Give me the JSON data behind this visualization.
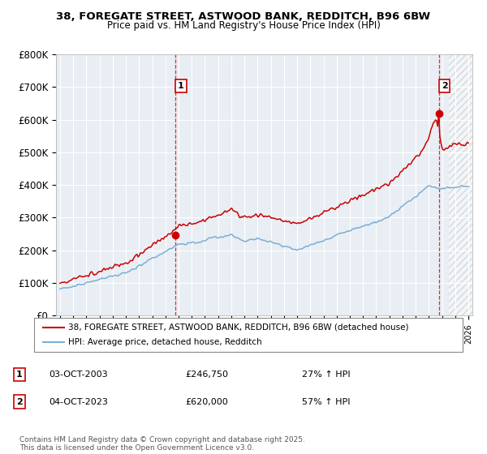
{
  "title_line1": "38, FOREGATE STREET, ASTWOOD BANK, REDDITCH, B96 6BW",
  "title_line2": "Price paid vs. HM Land Registry's House Price Index (HPI)",
  "ylabel_ticks": [
    "£0",
    "£100K",
    "£200K",
    "£300K",
    "£400K",
    "£500K",
    "£600K",
    "£700K",
    "£800K"
  ],
  "ytick_values": [
    0,
    100000,
    200000,
    300000,
    400000,
    500000,
    600000,
    700000,
    800000
  ],
  "ylim": [
    0,
    800000
  ],
  "xlim_start": 1994.7,
  "xlim_end": 2026.3,
  "sale1_x": 2003.75,
  "sale1_y": 246750,
  "sale1_label": "1",
  "sale1_date": "03-OCT-2003",
  "sale1_price": "£246,750",
  "sale1_hpi": "27% ↑ HPI",
  "sale2_x": 2023.75,
  "sale2_y": 620000,
  "sale2_label": "2",
  "sale2_date": "04-OCT-2023",
  "sale2_price": "£620,000",
  "sale2_hpi": "57% ↑ HPI",
  "line_color_red": "#CC0000",
  "line_color_blue": "#7BAFD4",
  "vline_color": "#CC0000",
  "bg_color": "#E8EEF4",
  "legend_line1": "38, FOREGATE STREET, ASTWOOD BANK, REDDITCH, B96 6BW (detached house)",
  "legend_line2": "HPI: Average price, detached house, Redditch",
  "footer": "Contains HM Land Registry data © Crown copyright and database right 2025.\nThis data is licensed under the Open Government Licence v3.0.",
  "hatch_start": 2024.5
}
